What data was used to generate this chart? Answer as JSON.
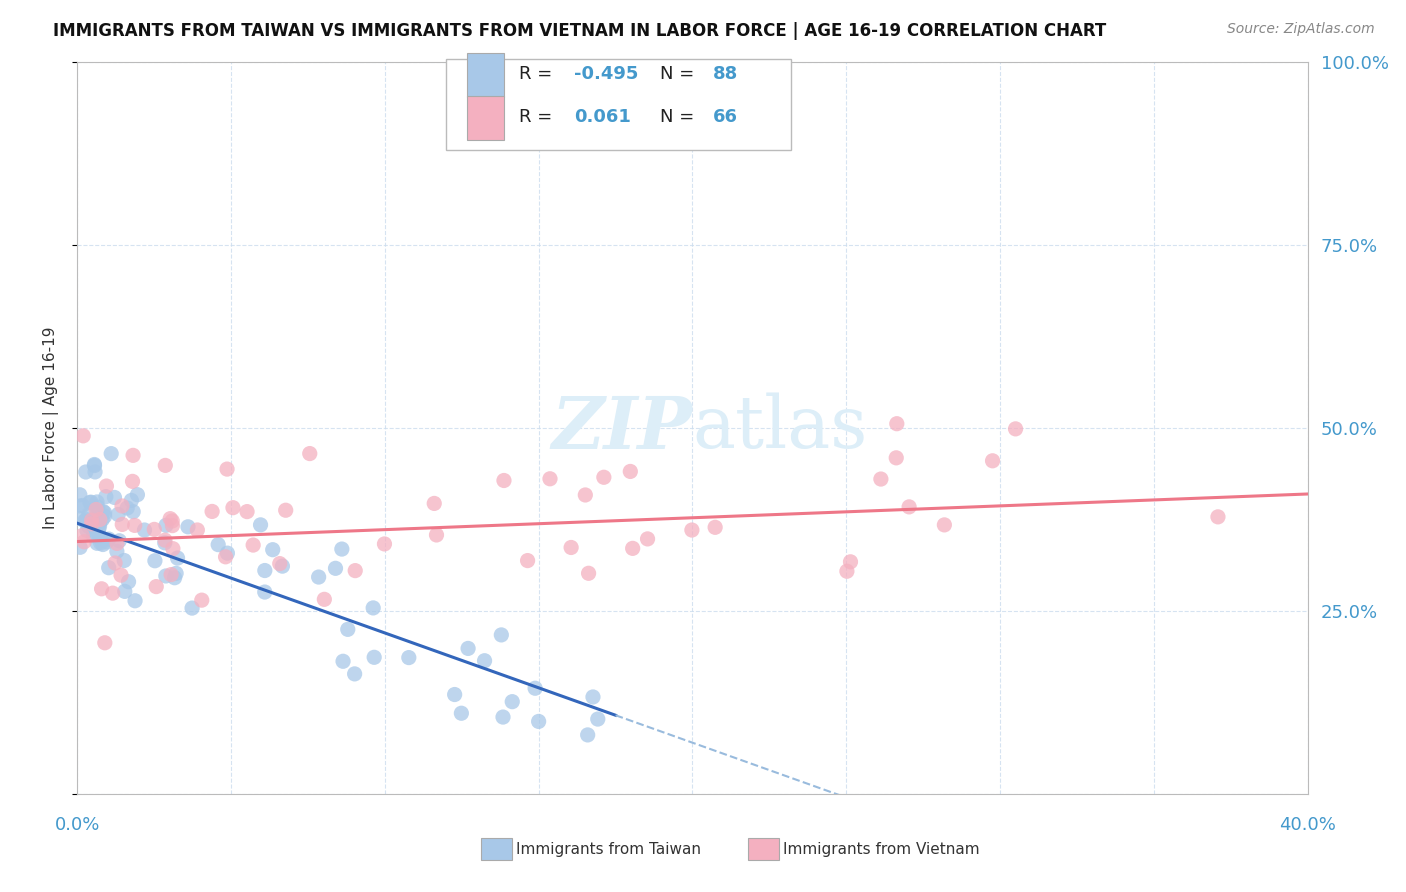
{
  "title": "IMMIGRANTS FROM TAIWAN VS IMMIGRANTS FROM VIETNAM IN LABOR FORCE | AGE 16-19 CORRELATION CHART",
  "source": "Source: ZipAtlas.com",
  "ylabel_axis": "In Labor Force | Age 16-19",
  "legend_taiwan": "Immigrants from Taiwan",
  "legend_vietnam": "Immigrants from Vietnam",
  "r_taiwan": "-0.495",
  "n_taiwan": "88",
  "r_vietnam": "0.061",
  "n_vietnam": "66",
  "color_taiwan": "#a8c8e8",
  "color_vietnam": "#f4b0c0",
  "color_taiwan_line": "#3366bb",
  "color_taiwan_ext": "#99bbdd",
  "color_vietnam_line": "#ee7788",
  "xlim": [
    0.0,
    0.4
  ],
  "ylim": [
    0.0,
    1.0
  ],
  "background_color": "#ffffff",
  "grid_color": "#ccddee",
  "tick_label_color": "#4499cc",
  "title_fontsize": 12,
  "watermark_color": "#ddeef8"
}
